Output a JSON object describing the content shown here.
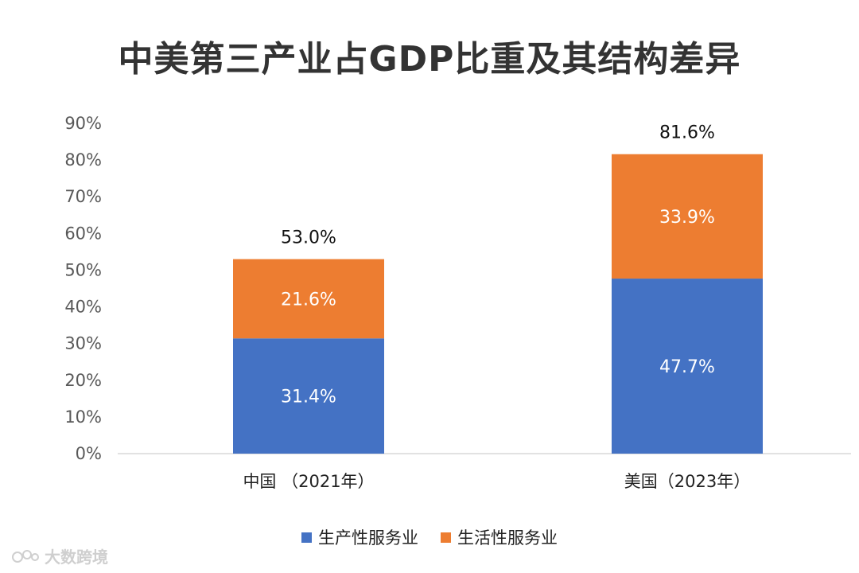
{
  "chart_data": {
    "type": "bar",
    "stacked": true,
    "title": "中美第三产业占GDP比重及其结构差异",
    "categories": [
      "中国 （2021年）",
      "美国（2023年）"
    ],
    "series": [
      {
        "name": "生产性服务业",
        "color": "#4472C4",
        "values": [
          31.4,
          47.7
        ],
        "labels": [
          "31.4%",
          "47.7%"
        ]
      },
      {
        "name": "生活性服务业",
        "color": "#ED7D31",
        "values": [
          21.6,
          33.9
        ],
        "labels": [
          "21.6%",
          "33.9%"
        ]
      }
    ],
    "totals": [
      53.0,
      81.6
    ],
    "total_labels": [
      "53.0%",
      "81.6%"
    ],
    "ylim": [
      0,
      90
    ],
    "yticks": [
      0,
      10,
      20,
      30,
      40,
      50,
      60,
      70,
      80,
      90
    ],
    "ytick_labels": [
      "0%",
      "10%",
      "20%",
      "30%",
      "40%",
      "50%",
      "60%",
      "70%",
      "80%",
      "90%"
    ],
    "xlabel": "",
    "ylabel": "",
    "legend_position": "bottom-center",
    "grid": false
  },
  "watermark": {
    "text": "大数跨境",
    "logo_icon": "kaola-logo-icon"
  }
}
